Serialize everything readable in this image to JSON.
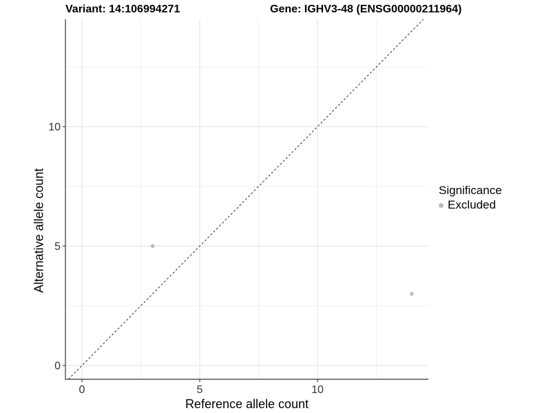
{
  "titles": {
    "left": "Variant: 14:106994271",
    "right": "Gene: IGHV3-48 (ENSG00000211964)"
  },
  "legend": {
    "title": "Significance",
    "entries": [
      {
        "label": "Excluded",
        "marker": "dot-icon",
        "color": "#bcbcbc"
      }
    ]
  },
  "colors": {
    "background": "#ffffff",
    "axis_line": "#333333",
    "tick_label": "#333333",
    "grid_major": "#e3e3e3",
    "grid_minor": "#f0f0f0",
    "reference_line": "#111111",
    "point": "#bcbcbc"
  },
  "chart_data": {
    "type": "scatter",
    "title": "Variant: 14:106994271    Gene: IGHV3-48 (ENSG00000211964)",
    "xlabel": "Reference allele count",
    "ylabel": "Alternative allele count",
    "x_ticks": [
      0,
      5,
      10
    ],
    "y_ticks": [
      0,
      5,
      10
    ],
    "x_minor_ticks": [
      2.5,
      7.5,
      12.5
    ],
    "y_minor_ticks": [
      2.5,
      7.5,
      12.5
    ],
    "xlim": [
      -0.7,
      14.7
    ],
    "ylim": [
      -0.6,
      15.1
    ],
    "grid": true,
    "legend_position": "right",
    "legend_title": "Significance",
    "series": [
      {
        "name": "Excluded",
        "color": "#bcbcbc",
        "points": [
          {
            "x": 3,
            "y": 5
          },
          {
            "x": 14,
            "y": 3
          }
        ]
      }
    ],
    "reference_line": {
      "style": "dashed",
      "slope": 1,
      "intercept": 0
    }
  }
}
